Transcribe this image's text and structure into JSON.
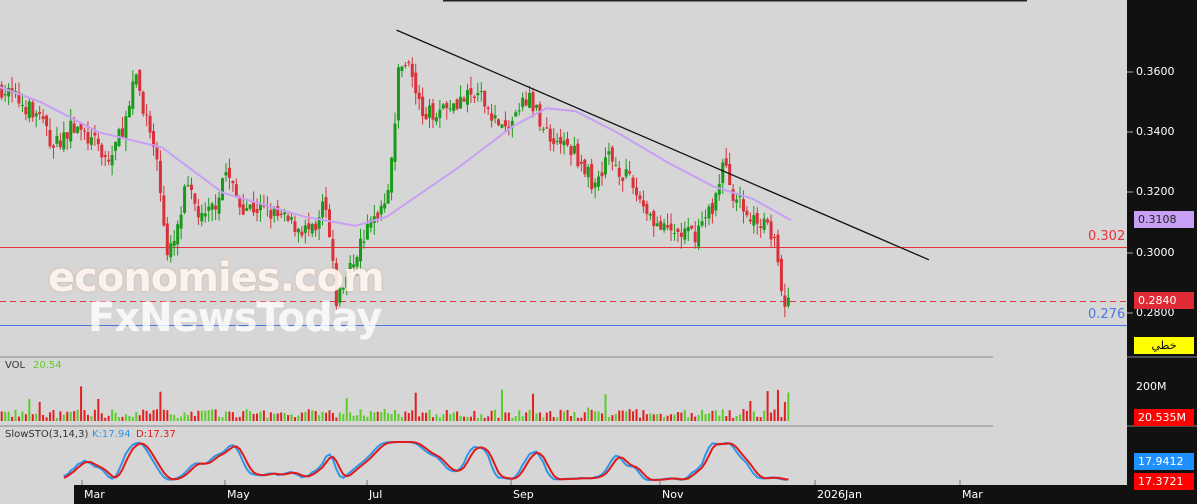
{
  "chart_data": {
    "type": "candlestick",
    "price_axis": {
      "ticks": [
        "0.3600",
        "0.3400",
        "0.3200",
        "0.3000",
        "0.2800"
      ],
      "ylim": [
        0.272,
        0.383
      ]
    },
    "x_axis": {
      "ticks": [
        "Mar",
        "May",
        "Jul",
        "Sep",
        "Nov",
        "2026Jan",
        "Mar"
      ]
    },
    "price_path": [
      [
        "2025-01-26",
        0.355
      ],
      [
        "2025-02-12",
        0.345
      ],
      [
        "2025-02-17",
        0.335
      ],
      [
        "2025-02-25",
        0.342
      ],
      [
        "2025-03-08",
        0.335
      ],
      [
        "2025-03-12",
        0.33
      ],
      [
        "2025-03-21",
        0.348
      ],
      [
        "2025-03-23",
        0.36
      ],
      [
        "2025-03-29",
        0.34
      ],
      [
        "2025-04-03",
        0.32
      ],
      [
        "2025-04-05",
        0.298
      ],
      [
        "2025-04-09",
        0.305
      ],
      [
        "2025-04-13",
        0.322
      ],
      [
        "2025-04-20",
        0.31
      ],
      [
        "2025-04-26",
        0.318
      ],
      [
        "2025-04-29",
        0.328
      ],
      [
        "2025-05-05",
        0.316
      ],
      [
        "2025-05-16",
        0.314
      ],
      [
        "2025-05-28",
        0.309
      ],
      [
        "2025-06-06",
        0.306
      ],
      [
        "2025-06-09",
        0.318
      ],
      [
        "2025-06-12",
        0.3
      ],
      [
        "2025-06-14",
        0.284
      ],
      [
        "2025-06-20",
        0.295
      ],
      [
        "2025-06-25",
        0.305
      ],
      [
        "2025-07-01",
        0.313
      ],
      [
        "2025-07-05",
        0.32
      ],
      [
        "2025-07-09",
        0.345
      ],
      [
        "2025-07-10",
        0.365
      ],
      [
        "2025-07-14",
        0.362
      ],
      [
        "2025-07-20",
        0.345
      ],
      [
        "2025-07-31",
        0.35
      ],
      [
        "2025-08-12",
        0.352
      ],
      [
        "2025-08-23",
        0.34
      ],
      [
        "2025-09-01",
        0.352
      ],
      [
        "2025-09-09",
        0.34
      ],
      [
        "2025-09-21",
        0.333
      ],
      [
        "2025-09-29",
        0.322
      ],
      [
        "2025-10-04",
        0.333
      ],
      [
        "2025-10-12",
        0.325
      ],
      [
        "2025-10-20",
        0.315
      ],
      [
        "2025-10-27",
        0.307
      ],
      [
        "2025-11-09",
        0.306
      ],
      [
        "2025-11-17",
        0.316
      ],
      [
        "2025-11-21",
        0.33
      ],
      [
        "2025-11-25",
        0.32
      ],
      [
        "2025-12-03",
        0.31
      ],
      [
        "2025-12-09",
        0.312
      ],
      [
        "2025-12-13",
        0.3
      ],
      [
        "2025-12-15",
        0.285
      ],
      [
        "2025-12-19",
        0.284
      ]
    ],
    "moving_average": [
      [
        "2025-01-26",
        0.355
      ],
      [
        "2025-02-12",
        0.35
      ],
      [
        "2025-03-08",
        0.34
      ],
      [
        "2025-04-03",
        0.335
      ],
      [
        "2025-04-28",
        0.32
      ],
      [
        "2025-06-01",
        0.312
      ],
      [
        "2025-06-22",
        0.309
      ],
      [
        "2025-07-05",
        0.312
      ],
      [
        "2025-08-03",
        0.328
      ],
      [
        "2025-08-26",
        0.342
      ],
      [
        "2025-09-09",
        0.348
      ],
      [
        "2025-09-21",
        0.347
      ],
      [
        "2025-10-08",
        0.34
      ],
      [
        "2025-10-29",
        0.33
      ],
      [
        "2025-11-17",
        0.322
      ],
      [
        "2025-12-03",
        0.318
      ],
      [
        "2025-12-19",
        0.3108
      ]
    ],
    "trendline": [
      [
        "2025-07-09",
        0.3739
      ],
      [
        "2026-02-14",
        0.2977
      ]
    ],
    "levels": [
      {
        "value": 0.302,
        "label": "0.302",
        "color": "#e8333c",
        "style": "solid"
      },
      {
        "value": 0.284,
        "color": "#e8333c",
        "style": "dashed"
      },
      {
        "value": 0.276,
        "label": "0.276",
        "color": "#4a78e0",
        "style": "solid"
      }
    ],
    "colors": {
      "up": "#1a9a1a",
      "down": "#d9303a",
      "ma": "#c7a0f5",
      "vol_up": "#5ccc2a",
      "vol_down": "#e02020",
      "k": "#2f95e8",
      "d": "#e01a1a"
    },
    "volume": {
      "label": "VOL",
      "value": "20.54",
      "axis_tick": "200M",
      "last_tag": "20.535M"
    },
    "stochastic": {
      "label": "SlowSTO(3,14,3)",
      "k_label": "K:17.94",
      "d_label": "D:17.37",
      "k_tag": "17.9412",
      "d_tag": "17.3721"
    }
  },
  "tags": {
    "ma": "0.3108",
    "last": "0.2840",
    "yellow": "خطي"
  },
  "watermark": {
    "line1": "economies.com",
    "line2": "FxNewsToday"
  }
}
